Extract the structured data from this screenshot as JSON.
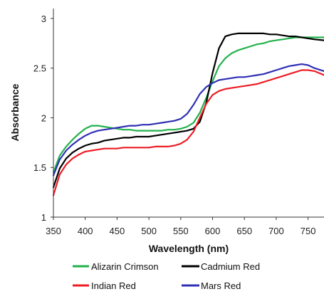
{
  "chart_data": {
    "type": "line",
    "title": "",
    "xlabel": "Wavelength (nm)",
    "ylabel": "Absorbance",
    "xlim": [
      350,
      775
    ],
    "ylim": [
      1,
      3.1
    ],
    "x_ticks": [
      350,
      400,
      450,
      500,
      550,
      600,
      650,
      700,
      750
    ],
    "x_tick_labels": [
      "350",
      "400",
      "450",
      "500",
      "550",
      "600",
      "650",
      "700",
      "750"
    ],
    "y_ticks": [
      1,
      1.5,
      2,
      2.5,
      3
    ],
    "y_tick_labels": [
      "1",
      "1.5",
      "2",
      "2.5",
      "3"
    ],
    "grid": false,
    "legend_position": "bottom",
    "series": [
      {
        "name": "Alizarin Crimson",
        "color": "#22b14c",
        "x": [
          350,
          360,
          370,
          380,
          390,
          400,
          410,
          420,
          430,
          440,
          450,
          460,
          470,
          480,
          490,
          500,
          510,
          520,
          530,
          540,
          550,
          560,
          570,
          580,
          590,
          600,
          610,
          620,
          630,
          640,
          650,
          660,
          670,
          680,
          690,
          700,
          710,
          720,
          730,
          740,
          750,
          760,
          775
        ],
        "y": [
          1.45,
          1.62,
          1.71,
          1.78,
          1.84,
          1.89,
          1.92,
          1.92,
          1.91,
          1.9,
          1.89,
          1.88,
          1.88,
          1.87,
          1.87,
          1.87,
          1.87,
          1.87,
          1.88,
          1.88,
          1.89,
          1.91,
          1.95,
          2.05,
          2.2,
          2.37,
          2.52,
          2.6,
          2.65,
          2.68,
          2.7,
          2.72,
          2.74,
          2.75,
          2.77,
          2.78,
          2.79,
          2.8,
          2.81,
          2.81,
          2.81,
          2.81,
          2.81
        ]
      },
      {
        "name": "Cadmium Red",
        "color": "#000000",
        "x": [
          350,
          360,
          370,
          380,
          390,
          400,
          410,
          420,
          430,
          440,
          450,
          460,
          470,
          480,
          490,
          500,
          510,
          520,
          530,
          540,
          550,
          560,
          570,
          580,
          590,
          600,
          610,
          620,
          630,
          640,
          650,
          660,
          670,
          680,
          690,
          700,
          710,
          720,
          730,
          740,
          750,
          760,
          775
        ],
        "y": [
          1.3,
          1.49,
          1.59,
          1.65,
          1.69,
          1.72,
          1.74,
          1.75,
          1.77,
          1.78,
          1.79,
          1.8,
          1.8,
          1.81,
          1.81,
          1.81,
          1.82,
          1.83,
          1.84,
          1.85,
          1.86,
          1.87,
          1.89,
          1.96,
          2.15,
          2.45,
          2.7,
          2.82,
          2.84,
          2.85,
          2.85,
          2.85,
          2.85,
          2.85,
          2.84,
          2.84,
          2.83,
          2.82,
          2.82,
          2.81,
          2.8,
          2.79,
          2.78
        ]
      },
      {
        "name": "Indian Red",
        "color": "#ed1c24",
        "x": [
          350,
          360,
          370,
          380,
          390,
          400,
          410,
          420,
          430,
          440,
          450,
          460,
          470,
          480,
          490,
          500,
          510,
          520,
          530,
          540,
          550,
          560,
          570,
          580,
          590,
          600,
          610,
          620,
          630,
          640,
          650,
          660,
          670,
          680,
          690,
          700,
          710,
          720,
          730,
          740,
          750,
          760,
          775
        ],
        "y": [
          1.22,
          1.43,
          1.53,
          1.59,
          1.63,
          1.66,
          1.67,
          1.68,
          1.69,
          1.69,
          1.69,
          1.7,
          1.7,
          1.7,
          1.7,
          1.7,
          1.71,
          1.71,
          1.71,
          1.72,
          1.74,
          1.78,
          1.86,
          2.0,
          2.14,
          2.23,
          2.27,
          2.29,
          2.3,
          2.31,
          2.32,
          2.33,
          2.34,
          2.36,
          2.38,
          2.4,
          2.42,
          2.44,
          2.46,
          2.48,
          2.48,
          2.47,
          2.43
        ]
      },
      {
        "name": "Mars Red",
        "color": "#2f2fb5",
        "x": [
          350,
          360,
          370,
          380,
          390,
          400,
          410,
          420,
          430,
          440,
          450,
          460,
          470,
          480,
          490,
          500,
          510,
          520,
          530,
          540,
          550,
          560,
          570,
          580,
          590,
          600,
          610,
          620,
          630,
          640,
          650,
          660,
          670,
          680,
          690,
          700,
          710,
          720,
          730,
          740,
          750,
          760,
          775
        ],
        "y": [
          1.42,
          1.58,
          1.67,
          1.73,
          1.78,
          1.82,
          1.85,
          1.87,
          1.88,
          1.89,
          1.9,
          1.91,
          1.92,
          1.92,
          1.93,
          1.93,
          1.94,
          1.95,
          1.96,
          1.97,
          1.99,
          2.04,
          2.13,
          2.24,
          2.31,
          2.35,
          2.38,
          2.39,
          2.4,
          2.41,
          2.41,
          2.42,
          2.43,
          2.44,
          2.46,
          2.48,
          2.5,
          2.52,
          2.53,
          2.54,
          2.53,
          2.5,
          2.47
        ]
      }
    ]
  }
}
